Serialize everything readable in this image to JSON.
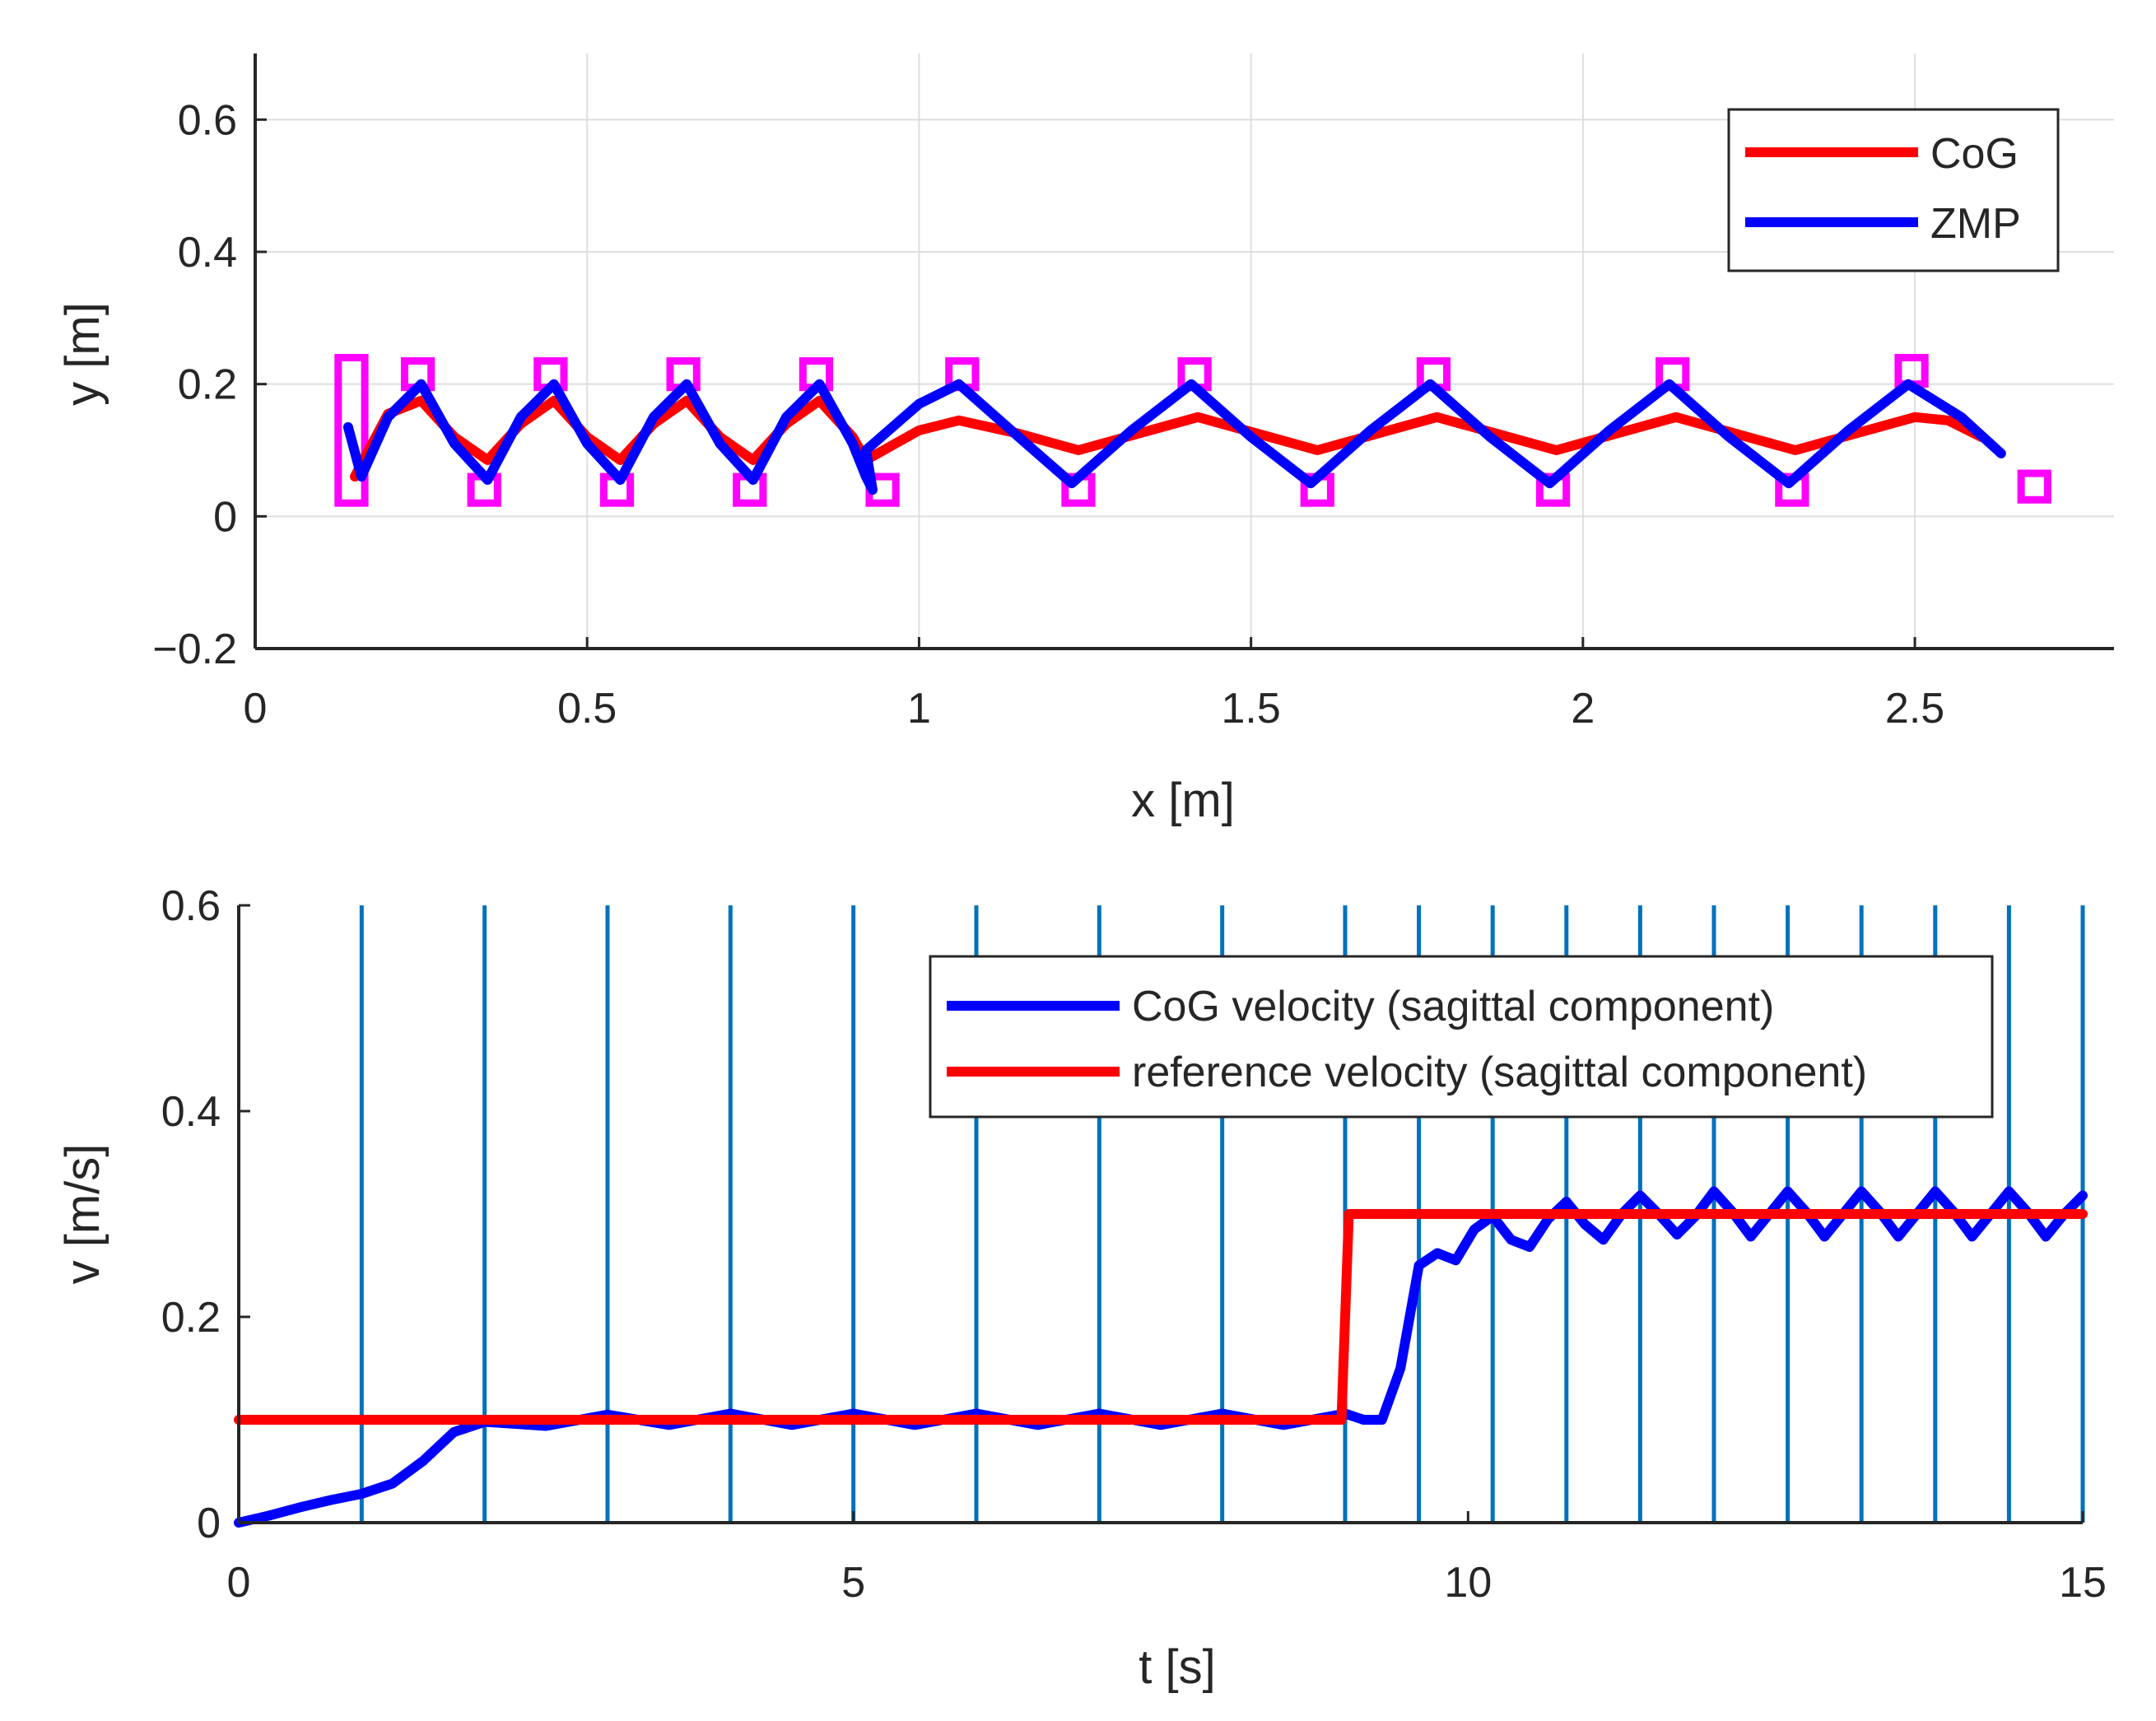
{
  "colors": {
    "cog": "#ff0000",
    "zmp": "#0000ff",
    "footstep": "#ff00ff",
    "step_line": "#0072bd",
    "grid": "#dedede",
    "axis": "#262626"
  },
  "chart_data": [
    {
      "type": "line",
      "id": "trajectory",
      "xlabel": "x [m]",
      "ylabel": "y [m]",
      "xlim": [
        0,
        2.8
      ],
      "ylim": [
        -0.2,
        0.7
      ],
      "xticks": [
        0,
        0.5,
        1,
        1.5,
        2,
        2.5
      ],
      "xtick_labels": [
        "0",
        "0.5",
        "1",
        "1.5",
        "2",
        "2.5"
      ],
      "yticks": [
        -0.2,
        0,
        0.2,
        0.4,
        0.6
      ],
      "ytick_labels": [
        "−0.2",
        "0",
        "0.2",
        "0.4",
        "0.6"
      ],
      "grid": true,
      "legend": {
        "position": "top-right",
        "entries": [
          "CoG",
          "ZMP"
        ]
      },
      "series": [
        {
          "name": "CoG",
          "x": [
            0.15,
            0.2,
            0.25,
            0.3,
            0.35,
            0.4,
            0.45,
            0.5,
            0.55,
            0.6,
            0.65,
            0.7,
            0.75,
            0.8,
            0.85,
            0.9,
            0.92,
            1.0,
            1.06,
            1.15,
            1.24,
            1.33,
            1.42,
            1.51,
            1.6,
            1.69,
            1.78,
            1.87,
            1.96,
            2.05,
            2.14,
            2.23,
            2.32,
            2.41,
            2.5,
            2.55,
            2.6
          ],
          "y": [
            0.06,
            0.155,
            0.175,
            0.12,
            0.085,
            0.14,
            0.175,
            0.12,
            0.085,
            0.14,
            0.175,
            0.12,
            0.085,
            0.14,
            0.175,
            0.12,
            0.085,
            0.13,
            0.145,
            0.125,
            0.1,
            0.125,
            0.15,
            0.125,
            0.1,
            0.125,
            0.15,
            0.125,
            0.1,
            0.125,
            0.15,
            0.125,
            0.1,
            0.125,
            0.15,
            0.145,
            0.12
          ]
        },
        {
          "name": "ZMP",
          "x": [
            0.14,
            0.16,
            0.2,
            0.25,
            0.3,
            0.35,
            0.4,
            0.45,
            0.5,
            0.55,
            0.6,
            0.65,
            0.7,
            0.75,
            0.8,
            0.85,
            0.9,
            0.92,
            0.93,
            0.92,
            1.0,
            1.06,
            1.15,
            1.23,
            1.32,
            1.41,
            1.5,
            1.59,
            1.68,
            1.77,
            1.86,
            1.95,
            2.04,
            2.13,
            2.22,
            2.31,
            2.4,
            2.49,
            2.57,
            2.63
          ],
          "y": [
            0.135,
            0.06,
            0.15,
            0.2,
            0.11,
            0.055,
            0.15,
            0.2,
            0.11,
            0.055,
            0.15,
            0.2,
            0.11,
            0.055,
            0.15,
            0.2,
            0.11,
            0.06,
            0.04,
            0.1,
            0.17,
            0.2,
            0.12,
            0.05,
            0.13,
            0.2,
            0.12,
            0.05,
            0.13,
            0.2,
            0.12,
            0.05,
            0.13,
            0.2,
            0.12,
            0.05,
            0.13,
            0.2,
            0.15,
            0.095
          ]
        }
      ],
      "footsteps": [
        {
          "x": 0.145,
          "y": 0.13,
          "w": 0.04,
          "h": 0.22
        },
        {
          "x": 0.245,
          "y": 0.215,
          "w": 0.04,
          "h": 0.04
        },
        {
          "x": 0.345,
          "y": 0.04,
          "w": 0.04,
          "h": 0.04
        },
        {
          "x": 0.445,
          "y": 0.215,
          "w": 0.04,
          "h": 0.04
        },
        {
          "x": 0.545,
          "y": 0.04,
          "w": 0.04,
          "h": 0.04
        },
        {
          "x": 0.645,
          "y": 0.215,
          "w": 0.04,
          "h": 0.04
        },
        {
          "x": 0.745,
          "y": 0.04,
          "w": 0.04,
          "h": 0.04
        },
        {
          "x": 0.845,
          "y": 0.215,
          "w": 0.04,
          "h": 0.04
        },
        {
          "x": 0.945,
          "y": 0.04,
          "w": 0.04,
          "h": 0.04
        },
        {
          "x": 1.065,
          "y": 0.215,
          "w": 0.04,
          "h": 0.04
        },
        {
          "x": 1.24,
          "y": 0.04,
          "w": 0.04,
          "h": 0.04
        },
        {
          "x": 1.415,
          "y": 0.215,
          "w": 0.04,
          "h": 0.04
        },
        {
          "x": 1.6,
          "y": 0.04,
          "w": 0.04,
          "h": 0.04
        },
        {
          "x": 1.775,
          "y": 0.215,
          "w": 0.04,
          "h": 0.04
        },
        {
          "x": 1.955,
          "y": 0.04,
          "w": 0.04,
          "h": 0.04
        },
        {
          "x": 2.135,
          "y": 0.215,
          "w": 0.04,
          "h": 0.04
        },
        {
          "x": 2.315,
          "y": 0.04,
          "w": 0.04,
          "h": 0.04
        },
        {
          "x": 2.495,
          "y": 0.22,
          "w": 0.04,
          "h": 0.04
        },
        {
          "x": 2.68,
          "y": 0.045,
          "w": 0.04,
          "h": 0.04
        }
      ]
    },
    {
      "type": "line",
      "id": "velocity",
      "xlabel": "t [s]",
      "ylabel": "v [m/s]",
      "xlim": [
        0,
        15
      ],
      "ylim": [
        0,
        0.6
      ],
      "xticks": [
        0,
        5,
        10,
        15
      ],
      "xtick_labels": [
        "0",
        "5",
        "10",
        "15"
      ],
      "yticks": [
        0,
        0.2,
        0.4,
        0.6
      ],
      "ytick_labels": [
        "0",
        "0.2",
        "0.4",
        "0.6"
      ],
      "grid": false,
      "legend": {
        "position": "top-right",
        "entries": [
          "CoG velocity (sagittal component)",
          "reference velocity (sagittal component)"
        ]
      },
      "step_times": [
        1,
        2,
        3,
        4,
        5,
        6,
        7,
        8,
        9,
        9.6,
        10.2,
        10.8,
        11.4,
        12,
        12.6,
        13.2,
        13.8,
        14.4,
        15
      ],
      "series": [
        {
          "name": "CoG velocity (sagittal component)",
          "t": [
            0,
            0.25,
            0.5,
            0.75,
            1.0,
            1.25,
            1.5,
            1.75,
            2.0,
            2.5,
            3.0,
            3.5,
            4.0,
            4.5,
            5.0,
            5.5,
            6.0,
            6.5,
            7.0,
            7.5,
            8.0,
            8.5,
            9.0,
            9.15,
            9.3,
            9.45,
            9.6,
            9.75,
            9.9,
            10.05,
            10.2,
            10.35,
            10.5,
            10.65,
            10.8,
            10.95,
            11.1,
            11.25,
            11.4,
            11.55,
            11.7,
            11.85,
            12.0,
            12.15,
            12.3,
            12.45,
            12.6,
            12.75,
            12.9,
            13.05,
            13.2,
            13.35,
            13.5,
            13.65,
            13.8,
            13.95,
            14.1,
            14.25,
            14.4,
            14.55,
            14.7,
            14.85,
            15.0
          ],
          "v": [
            0.0,
            0.007,
            0.015,
            0.022,
            0.028,
            0.038,
            0.06,
            0.088,
            0.098,
            0.094,
            0.105,
            0.095,
            0.106,
            0.095,
            0.106,
            0.095,
            0.106,
            0.095,
            0.106,
            0.095,
            0.106,
            0.095,
            0.106,
            0.1,
            0.1,
            0.15,
            0.25,
            0.262,
            0.255,
            0.285,
            0.298,
            0.275,
            0.268,
            0.295,
            0.312,
            0.29,
            0.275,
            0.3,
            0.318,
            0.3,
            0.28,
            0.298,
            0.322,
            0.302,
            0.278,
            0.3,
            0.322,
            0.302,
            0.278,
            0.3,
            0.322,
            0.302,
            0.278,
            0.3,
            0.322,
            0.302,
            0.278,
            0.3,
            0.322,
            0.302,
            0.278,
            0.3,
            0.318
          ]
        },
        {
          "name": "reference velocity (sagittal component)",
          "t": [
            0,
            8.97,
            9.03,
            15
          ],
          "v": [
            0.1,
            0.1,
            0.3,
            0.3
          ]
        }
      ]
    }
  ]
}
